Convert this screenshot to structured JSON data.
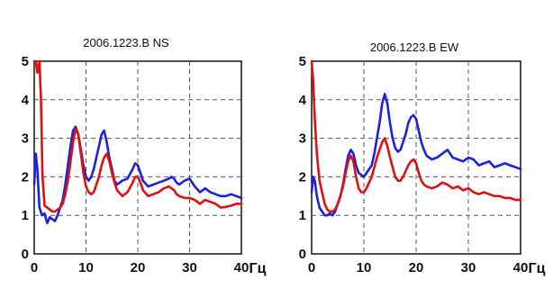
{
  "chart_data": [
    {
      "type": "line",
      "title": "2006.1223.B NS",
      "xlabel": "",
      "ylabel": "",
      "x_unit_label": "Гц",
      "xlim": [
        0,
        40
      ],
      "ylim": [
        0,
        5
      ],
      "xticks": [
        "0",
        "10",
        "20",
        "30",
        "40"
      ],
      "yticks": [
        "0",
        "1",
        "2",
        "3",
        "4",
        "5"
      ],
      "grid": true,
      "legend": "none",
      "series": [
        {
          "color": "#1f1fe0",
          "x": [
            0,
            0.3,
            0.6,
            1,
            1.5,
            2,
            2.5,
            3,
            3.5,
            4,
            4.5,
            5,
            5.5,
            6,
            6.5,
            7,
            7.5,
            8,
            8.5,
            9,
            9.5,
            10,
            10.5,
            11,
            11.5,
            12,
            12.5,
            13,
            13.5,
            14,
            14.5,
            15,
            15.5,
            16,
            17,
            18,
            19,
            19.5,
            20,
            20.5,
            21,
            22,
            23,
            24,
            25,
            26,
            26.5,
            27,
            27.5,
            28,
            29,
            30,
            31,
            32,
            33,
            34,
            35,
            36,
            37,
            38,
            39,
            40
          ],
          "y": [
            1.8,
            2.6,
            2.2,
            1.2,
            1.0,
            1.05,
            0.8,
            0.95,
            0.9,
            0.85,
            1.0,
            1.2,
            1.4,
            1.8,
            2.3,
            2.8,
            3.2,
            3.3,
            3.1,
            2.7,
            2.3,
            2.0,
            1.9,
            2.0,
            2.2,
            2.5,
            2.8,
            3.1,
            3.2,
            2.9,
            2.5,
            2.2,
            1.9,
            1.8,
            1.9,
            1.95,
            2.2,
            2.35,
            2.3,
            2.1,
            1.9,
            1.75,
            1.8,
            1.85,
            1.9,
            1.95,
            2.0,
            1.95,
            1.85,
            1.8,
            1.9,
            1.95,
            1.75,
            1.6,
            1.7,
            1.6,
            1.55,
            1.5,
            1.5,
            1.55,
            1.5,
            1.45
          ]
        },
        {
          "color": "#e01010",
          "x": [
            0,
            0.3,
            0.6,
            1,
            1.3,
            1.6,
            2,
            2.5,
            3,
            3.5,
            4,
            4.5,
            5,
            5.5,
            6,
            6.5,
            7,
            7.5,
            8,
            8.5,
            9,
            9.5,
            10,
            10.5,
            11,
            11.5,
            12,
            12.5,
            13,
            13.5,
            14,
            14.5,
            15,
            15.5,
            16,
            17,
            18,
            19,
            19.5,
            20,
            20.5,
            21,
            22,
            23,
            24,
            25,
            26,
            26.5,
            27,
            27.5,
            28,
            29,
            30,
            31,
            32,
            33,
            34,
            35,
            36,
            37,
            38,
            39,
            40
          ],
          "y": [
            5.0,
            5.0,
            4.7,
            5.0,
            4.0,
            2.0,
            1.25,
            1.2,
            1.15,
            1.1,
            1.1,
            1.15,
            1.2,
            1.3,
            1.55,
            1.9,
            2.4,
            2.9,
            3.25,
            3.1,
            2.6,
            2.1,
            1.75,
            1.6,
            1.55,
            1.6,
            1.8,
            2.0,
            2.3,
            2.5,
            2.6,
            2.4,
            2.1,
            1.85,
            1.65,
            1.5,
            1.6,
            1.85,
            2.0,
            2.0,
            1.85,
            1.65,
            1.5,
            1.55,
            1.6,
            1.7,
            1.75,
            1.7,
            1.65,
            1.55,
            1.5,
            1.45,
            1.45,
            1.4,
            1.3,
            1.4,
            1.35,
            1.3,
            1.2,
            1.22,
            1.25,
            1.3,
            1.3
          ]
        }
      ]
    },
    {
      "type": "line",
      "title": "2006.1223.B EW",
      "xlabel": "",
      "ylabel": "",
      "x_unit_label": "Гц",
      "xlim": [
        0,
        40
      ],
      "ylim": [
        0,
        5
      ],
      "xticks": [
        "0",
        "10",
        "20",
        "30",
        "40"
      ],
      "yticks": [
        "0",
        "1",
        "2",
        "3",
        "4",
        "5"
      ],
      "grid": true,
      "legend": "none",
      "series": [
        {
          "color": "#1f1fe0",
          "x": [
            0,
            0.3,
            0.6,
            1,
            1.5,
            2,
            2.5,
            3,
            3.5,
            4,
            4.5,
            5,
            5.5,
            6,
            6.5,
            7,
            7.5,
            8,
            8.5,
            9,
            9.5,
            10,
            10.5,
            11,
            11.5,
            12,
            12.5,
            13,
            13.5,
            14,
            14.5,
            15,
            15.5,
            16,
            16.5,
            17,
            17.5,
            18,
            18.5,
            19,
            19.5,
            20,
            20.5,
            21,
            21.5,
            22,
            23,
            24,
            25,
            26,
            27,
            28,
            29,
            30,
            31,
            32,
            33,
            34,
            35,
            36,
            37,
            38,
            39,
            40
          ],
          "y": [
            1.6,
            2.0,
            1.9,
            1.5,
            1.2,
            1.1,
            1.0,
            1.0,
            1.05,
            1.0,
            1.1,
            1.3,
            1.5,
            1.8,
            2.2,
            2.55,
            2.7,
            2.6,
            2.3,
            2.1,
            2.05,
            2.0,
            2.1,
            2.2,
            2.3,
            2.6,
            3.0,
            3.4,
            3.9,
            4.15,
            3.9,
            3.4,
            3.0,
            2.75,
            2.65,
            2.7,
            2.9,
            3.1,
            3.4,
            3.55,
            3.6,
            3.5,
            3.2,
            2.9,
            2.7,
            2.55,
            2.45,
            2.5,
            2.6,
            2.7,
            2.5,
            2.45,
            2.4,
            2.5,
            2.45,
            2.3,
            2.35,
            2.4,
            2.25,
            2.3,
            2.35,
            2.3,
            2.25,
            2.2
          ]
        },
        {
          "color": "#e01010",
          "x": [
            0,
            0.3,
            0.6,
            1,
            1.5,
            2,
            2.5,
            3,
            3.5,
            4,
            4.5,
            5,
            5.5,
            6,
            6.5,
            7,
            7.5,
            8,
            8.5,
            9,
            9.5,
            10,
            10.5,
            11,
            11.5,
            12,
            12.5,
            13,
            13.5,
            14,
            14.5,
            15,
            15.5,
            16,
            16.5,
            17,
            17.5,
            18,
            18.5,
            19,
            19.5,
            20,
            20.5,
            21,
            21.5,
            22,
            23,
            24,
            25,
            26,
            27,
            28,
            29,
            30,
            31,
            32,
            33,
            34,
            35,
            36,
            37,
            38,
            39,
            40
          ],
          "y": [
            5.0,
            4.5,
            3.5,
            2.6,
            1.9,
            1.6,
            1.3,
            1.15,
            1.1,
            1.1,
            1.15,
            1.3,
            1.5,
            1.75,
            2.1,
            2.4,
            2.55,
            2.4,
            2.0,
            1.7,
            1.6,
            1.6,
            1.7,
            1.85,
            2.0,
            2.25,
            2.5,
            2.7,
            2.9,
            3.0,
            2.8,
            2.5,
            2.25,
            2.0,
            1.9,
            1.9,
            2.0,
            2.15,
            2.3,
            2.4,
            2.45,
            2.35,
            2.1,
            1.9,
            1.8,
            1.75,
            1.7,
            1.75,
            1.85,
            1.8,
            1.7,
            1.75,
            1.65,
            1.7,
            1.6,
            1.55,
            1.6,
            1.55,
            1.5,
            1.5,
            1.45,
            1.45,
            1.4,
            1.4
          ]
        }
      ]
    }
  ]
}
